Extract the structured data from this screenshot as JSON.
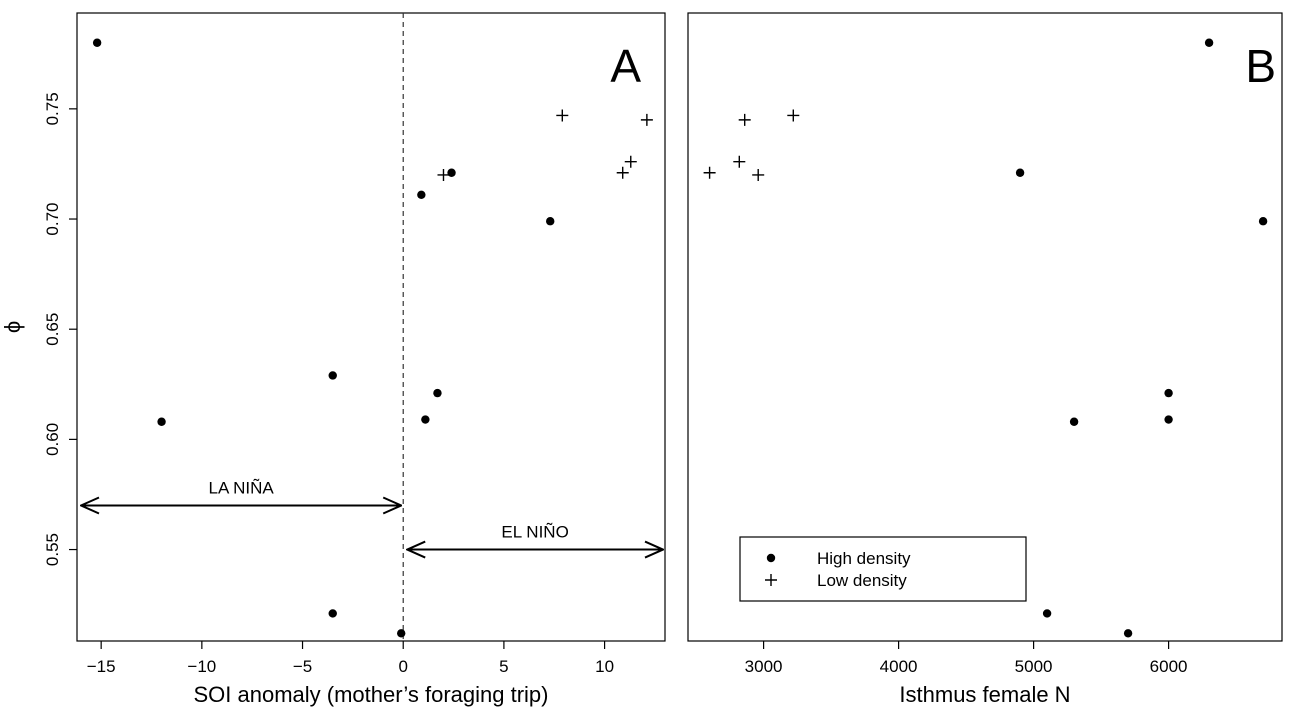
{
  "chart_data": [
    {
      "panel": "A",
      "type": "scatter",
      "panel_letter": "A",
      "xlabel": "SOI anomaly (mother’s foraging trip)",
      "ylabel": "ϕ",
      "xlim": [
        -16.2,
        13.0
      ],
      "ylim": [
        0.5085,
        0.7935
      ],
      "x_ticks": [
        -15,
        -10,
        -5,
        0,
        5,
        10
      ],
      "x_tick_labels": [
        "−15",
        "−10",
        "−5",
        "0",
        "5",
        "10"
      ],
      "y_ticks": [
        0.55,
        0.6,
        0.65,
        0.7,
        0.75
      ],
      "y_tick_labels": [
        "0.55",
        "0.60",
        "0.65",
        "0.70",
        "0.75"
      ],
      "reference_line": {
        "x": 0,
        "style": "dashed"
      },
      "annotations": [
        {
          "label": "LA NIÑA",
          "x_from": -16.2,
          "x_to": 0,
          "y": 0.57
        },
        {
          "label": "EL NIÑO",
          "x_from": 0,
          "x_to": 13.0,
          "y": 0.55
        }
      ],
      "series": [
        {
          "name": "High density",
          "marker": "dot",
          "points": [
            [
              -15.2,
              0.78
            ],
            [
              -12.0,
              0.608
            ],
            [
              -3.5,
              0.629
            ],
            [
              -3.5,
              0.521
            ],
            [
              -0.1,
              0.512
            ],
            [
              0.9,
              0.711
            ],
            [
              1.1,
              0.609
            ],
            [
              1.7,
              0.621
            ],
            [
              2.4,
              0.721
            ],
            [
              7.3,
              0.699
            ]
          ]
        },
        {
          "name": "Low density",
          "marker": "plus",
          "points": [
            [
              2.0,
              0.72
            ],
            [
              7.9,
              0.747
            ],
            [
              10.9,
              0.721
            ],
            [
              11.3,
              0.726
            ],
            [
              12.1,
              0.745
            ]
          ]
        }
      ]
    },
    {
      "panel": "B",
      "type": "scatter",
      "panel_letter": "B",
      "xlabel": "Isthmus female N",
      "ylabel": "",
      "xlim": [
        2440,
        6840
      ],
      "ylim": [
        0.5085,
        0.7935
      ],
      "x_ticks": [
        3000,
        4000,
        5000,
        6000
      ],
      "x_tick_labels": [
        "3000",
        "4000",
        "5000",
        "6000"
      ],
      "series": [
        {
          "name": "High density",
          "marker": "dot",
          "points": [
            [
              6300,
              0.78
            ],
            [
              4900,
              0.721
            ],
            [
              6700,
              0.699
            ],
            [
              6000,
              0.621
            ],
            [
              5300,
              0.608
            ],
            [
              6000,
              0.609
            ],
            [
              5100,
              0.521
            ],
            [
              5700,
              0.512
            ]
          ]
        },
        {
          "name": "Low density",
          "marker": "plus",
          "points": [
            [
              2600,
              0.721
            ],
            [
              2820,
              0.726
            ],
            [
              2860,
              0.745
            ],
            [
              2960,
              0.72
            ],
            [
              3220,
              0.747
            ]
          ]
        }
      ],
      "legend": {
        "position": "bottom-left",
        "entries": [
          {
            "label": "High density",
            "marker": "dot"
          },
          {
            "label": "Low density",
            "marker": "plus"
          }
        ]
      }
    }
  ]
}
